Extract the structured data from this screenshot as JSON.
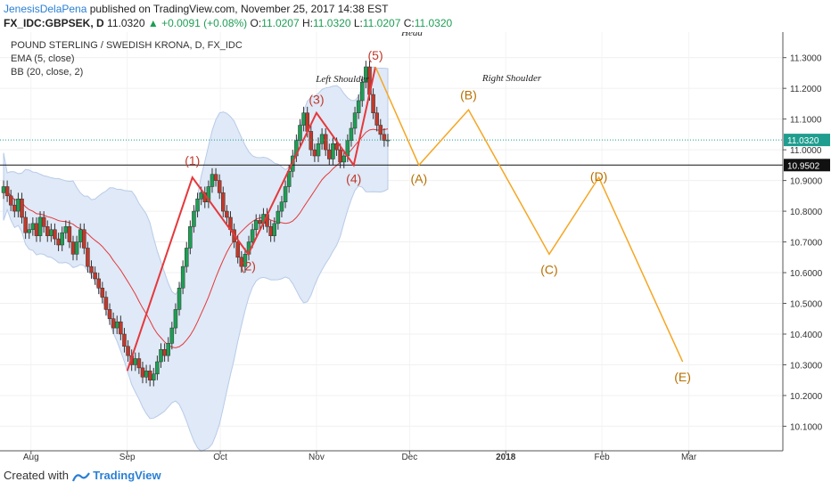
{
  "header": {
    "author": "JenesisDelaPena",
    "published_text": "published on TradingView.com, November 25, 2017 14:38 EST",
    "symbol": "FX_IDC:GBPSEK, D",
    "last": "11.0320",
    "change": "▲ +0.0091 (+0.08%)",
    "o_label": "O:",
    "o": "11.0207",
    "h_label": "H:",
    "h": "11.0320",
    "l_label": "L:",
    "l": "11.0207",
    "c_label": "C:",
    "c": "11.0320"
  },
  "legend": {
    "title": "POUND STERLING / SWEDISH KRONA, D, FX_IDC",
    "ema": "EMA (5, close)",
    "bb": "BB (20, close, 2)"
  },
  "footer": {
    "created_with": "Created with",
    "brand": "TradingView"
  },
  "colors": {
    "up": "#1e9e54",
    "down": "#c0392b",
    "wave": "#e5383b",
    "projection": "#f5a623",
    "band_fill": "#dfe9f7",
    "ema": "#e5383b",
    "price_tag": "#1f9e8f"
  },
  "chart_data": {
    "type": "candlestick",
    "y_range": [
      10.02,
      11.36
    ],
    "y_ticks": [
      "11.3000",
      "11.2000",
      "11.1000",
      "11.0000",
      "10.9000",
      "10.8000",
      "10.7000",
      "10.6000",
      "10.5000",
      "10.4000",
      "10.3000",
      "10.2000",
      "10.1000"
    ],
    "x_ticks": [
      "Aug",
      "Sep",
      "Oct",
      "Nov",
      "Dec",
      "2018",
      "Feb",
      "Mar"
    ],
    "current_price": 11.032,
    "current_price_label": "11.0320",
    "horizontal_level": 10.9502,
    "horizontal_level_label": "10.9502",
    "closes": [
      10.88,
      10.85,
      10.82,
      10.8,
      10.84,
      10.78,
      10.73,
      10.74,
      10.76,
      10.72,
      10.78,
      10.75,
      10.72,
      10.74,
      10.71,
      10.69,
      10.73,
      10.75,
      10.7,
      10.66,
      10.7,
      10.74,
      10.68,
      10.62,
      10.6,
      10.58,
      10.55,
      10.52,
      10.48,
      10.45,
      10.42,
      10.44,
      10.4,
      10.36,
      10.33,
      10.3,
      10.32,
      10.29,
      10.26,
      10.28,
      10.25,
      10.27,
      10.31,
      10.35,
      10.33,
      10.37,
      10.42,
      10.48,
      10.55,
      10.62,
      10.68,
      10.75,
      10.8,
      10.84,
      10.86,
      10.83,
      10.88,
      10.92,
      10.9,
      10.86,
      10.8,
      10.78,
      10.74,
      10.7,
      10.65,
      10.62,
      10.66,
      10.7,
      10.74,
      10.77,
      10.76,
      10.79,
      10.75,
      10.72,
      10.76,
      10.8,
      10.83,
      10.88,
      10.93,
      10.98,
      11.03,
      11.08,
      11.12,
      11.06,
      11.0,
      10.98,
      11.02,
      11.05,
      11.0,
      10.97,
      11.02,
      11.0,
      10.96,
      10.98,
      11.03,
      11.07,
      11.12,
      11.16,
      11.22,
      11.27,
      11.18,
      11.12,
      11.08,
      11.05,
      11.03,
      11.032
    ],
    "wave_points": [
      {
        "label": "",
        "date": "2017-09-01",
        "price": 10.28
      },
      {
        "label": "(1)",
        "date": "2017-09-22",
        "price": 10.91
      },
      {
        "label": "(2)",
        "date": "2017-10-10",
        "price": 10.66
      },
      {
        "label": "(3)",
        "date": "2017-11-01",
        "price": 11.12
      },
      {
        "label": "(4)",
        "date": "2017-11-13",
        "price": 10.95
      },
      {
        "label": "(5)",
        "date": "2017-11-20",
        "price": 11.27
      }
    ],
    "projection_points": [
      {
        "label": "",
        "date": "2017-11-20",
        "price": 11.27
      },
      {
        "label": "(A)",
        "date": "2017-12-04",
        "price": 10.95
      },
      {
        "label": "(B)",
        "date": "2017-12-20",
        "price": 11.13
      },
      {
        "label": "(C)",
        "date": "2018-01-15",
        "price": 10.66
      },
      {
        "label": "(D)",
        "date": "2018-01-31",
        "price": 10.91
      },
      {
        "label": "(E)",
        "date": "2018-02-27",
        "price": 10.31
      }
    ],
    "annotations": [
      "Left Shoulder",
      "Head",
      "Right Shoulder"
    ]
  }
}
